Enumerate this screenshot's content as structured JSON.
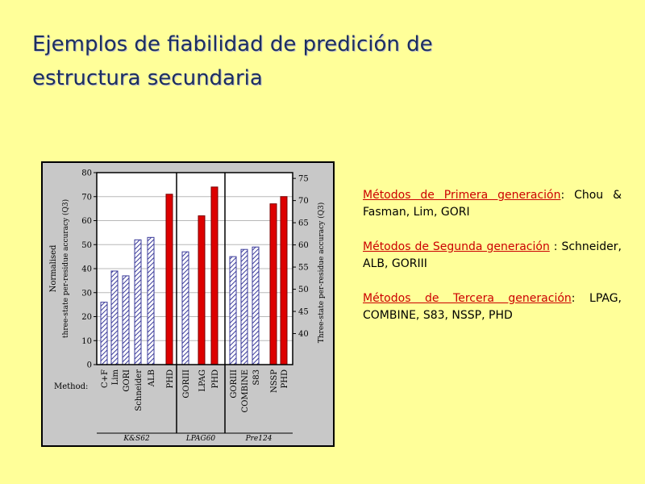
{
  "slide": {
    "title_line1": "Ejemplos de fiabilidad de predición de",
    "title_line2": "estructura secundaria"
  },
  "notes": [
    {
      "term": "Métodos de Primera generación",
      "rest": ": Chou & Fasman, Lim, GORI"
    },
    {
      "term": "Métodos de Segunda generación",
      "rest": " : Schneider, ALB, GORIII"
    },
    {
      "term": "Métodos de Tercera generación",
      "rest": ": LPAG, COMBINE, S83, NSSP, PHD"
    }
  ],
  "colors": {
    "background": "#ffff99",
    "title": "#1c2f5e",
    "term": "#cc0000",
    "bar_red": "#dd0000",
    "bar_hatch": "#3a3a9a"
  },
  "chart_data": {
    "type": "bar",
    "left_axis": {
      "label_line1": "Normalised",
      "label_line2": "three-state per-residue accuracy (Q3)",
      "ylim": [
        0,
        80
      ],
      "ticks": [
        "0",
        "10",
        "20",
        "30",
        "40",
        "50",
        "60",
        "70",
        "80"
      ]
    },
    "right_axis": {
      "label": "Three-state per-residue accuracy (Q3)",
      "ylim": [
        33,
        76.3
      ],
      "ticks": [
        "40",
        "45",
        "50",
        "55",
        "60",
        "65",
        "70",
        "75"
      ]
    },
    "method_label": "Method:",
    "groups": [
      {
        "dataset": "K&S62",
        "categories": [
          "C+F",
          "Lim",
          "GORI",
          "Schneider",
          "ALB",
          "PHD"
        ],
        "values": [
          26,
          39,
          37,
          52,
          53,
          71
        ],
        "styles": [
          "hatch",
          "hatch",
          "hatch",
          "hatch",
          "hatch",
          "solid"
        ]
      },
      {
        "dataset": "LPAG60",
        "categories": [
          "GORIII",
          "LPAG",
          "PHD"
        ],
        "values": [
          47,
          62,
          74
        ],
        "styles": [
          "hatch",
          "solid",
          "solid"
        ]
      },
      {
        "dataset": "Pre124",
        "categories": [
          "GORIII",
          "COMBINE",
          "S83",
          "NSSP",
          "PHD"
        ],
        "values": [
          45,
          48,
          49,
          67,
          70
        ],
        "styles": [
          "hatch",
          "hatch",
          "hatch",
          "solid",
          "solid"
        ]
      }
    ],
    "grid": true
  }
}
